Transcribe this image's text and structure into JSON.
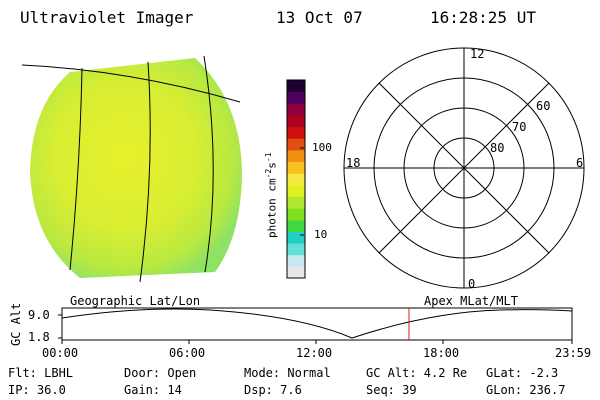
{
  "header": {
    "title": "Ultraviolet Imager",
    "date": "13 Oct 07",
    "time": "16:28:25 UT"
  },
  "colorbar": {
    "label": "photon cm",
    "label_sup1": "-2",
    "label_mid": "s",
    "label_sup2": "-1",
    "ticks": [
      "100",
      "10"
    ],
    "colors": [
      "#e8e8e8",
      "#c8e8f0",
      "#60e0d8",
      "#20d0c0",
      "#40d840",
      "#80e020",
      "#b0e830",
      "#e0f020",
      "#f8e840",
      "#f8c020",
      "#f09010",
      "#e05010",
      "#d01010",
      "#b00020",
      "#900040",
      "#500060",
      "#200030"
    ]
  },
  "polar_plot": {
    "labels": [
      "12",
      "18",
      "6",
      "0",
      "60",
      "70",
      "80"
    ]
  },
  "timeline": {
    "left_label": "Geographic Lat/Lon",
    "right_label": "Apex MLat/MLT",
    "y_label": "GC Alt",
    "y_ticks": [
      "9.0",
      "1.8"
    ],
    "x_ticks": [
      "00:00",
      "06:00",
      "12:00",
      "18:00",
      "23:59"
    ]
  },
  "info": {
    "flt": "Flt: LBHL",
    "ip": "IP: 36.0",
    "door": "Door: Open",
    "gain": "Gain: 14",
    "mode": "Mode: Normal",
    "dsp": "Dsp:    7.6",
    "gcalt": "GC Alt: 4.2 Re",
    "seq": "Seq: 39",
    "glat": "GLat:  -2.3",
    "glon": "GLon: 236.7"
  }
}
